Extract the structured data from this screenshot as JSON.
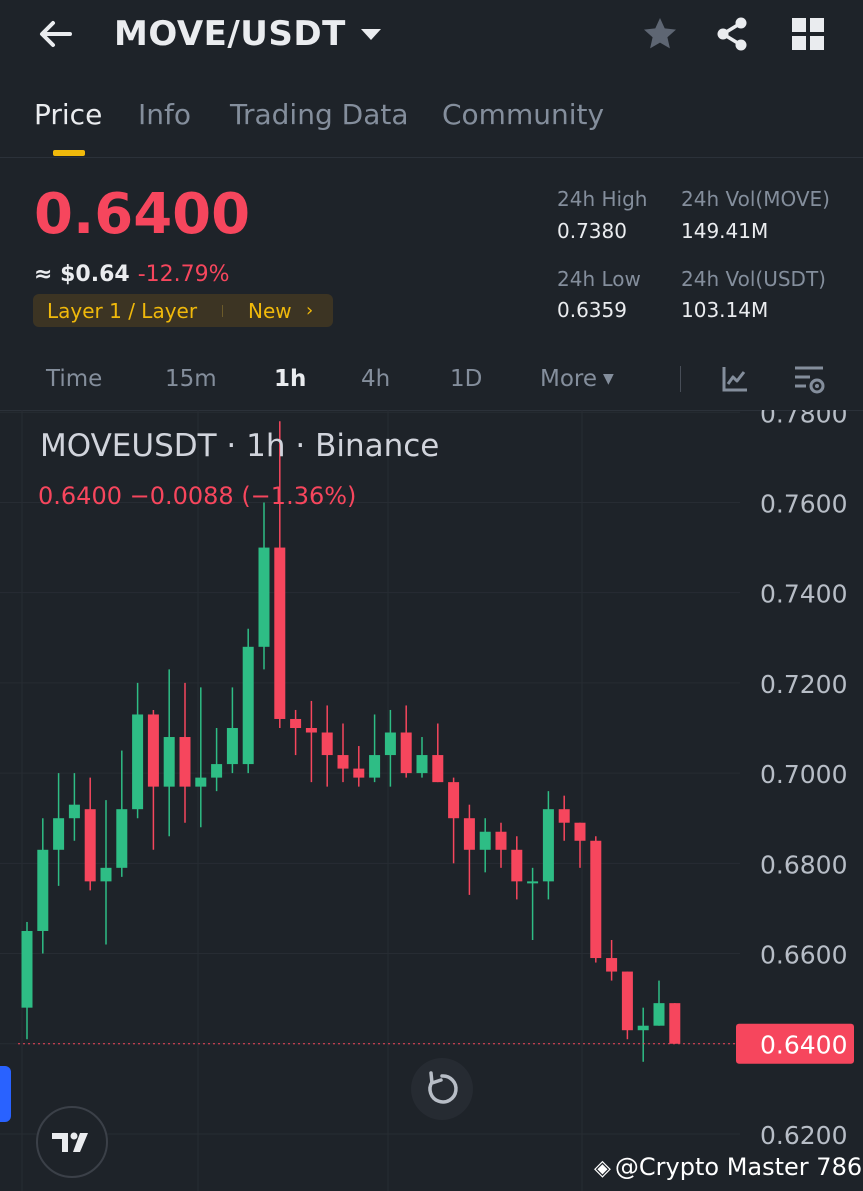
{
  "header": {
    "pair": "MOVE/USDT",
    "icons": [
      "back-arrow-icon",
      "caret-down-icon",
      "star-icon",
      "share-icon",
      "grid-icon"
    ]
  },
  "tabs": [
    {
      "label": "Price",
      "active": true
    },
    {
      "label": "Info",
      "active": false
    },
    {
      "label": "Trading Data",
      "active": false
    },
    {
      "label": "Community",
      "active": false
    }
  ],
  "price": {
    "last": "0.6400",
    "approx_usd": "≈ $0.64",
    "change_pct": "-12.79%",
    "tag": "Layer 1 / Layer",
    "tag_badge": "New",
    "color_down": "#f6465d",
    "color_up": "#2ebd85",
    "accent": "#f0b90b"
  },
  "stats": {
    "high_label": "24h High",
    "high_value": "0.7380",
    "low_label": "24h Low",
    "low_value": "0.6359",
    "vol_move_label": "24h Vol(MOVE)",
    "vol_move_value": "149.41M",
    "vol_usdt_label": "24h Vol(USDT)",
    "vol_usdt_value": "103.14M"
  },
  "intervals": [
    {
      "label": "Time",
      "active": false
    },
    {
      "label": "15m",
      "active": false
    },
    {
      "label": "1h",
      "active": true
    },
    {
      "label": "4h",
      "active": false
    },
    {
      "label": "1D",
      "active": false
    },
    {
      "label": "More",
      "active": false
    }
  ],
  "chart": {
    "title": "MOVEUSDT · 1h · Binance",
    "ohlc_line": "0.6400  −0.0088 (−1.36%)",
    "watermark": "@Crypto  Master 786"
  },
  "chart_data": {
    "type": "candlestick",
    "symbol": "MOVEUSDT",
    "interval": "1h",
    "exchange": "Binance",
    "ylim": [
      0.616,
      0.7805
    ],
    "yticks": [
      "0.7800",
      "0.7600",
      "0.7400",
      "0.7200",
      "0.7000",
      "0.6800",
      "0.6600",
      "0.6400",
      "0.6200"
    ],
    "last_price_label": "0.6400",
    "last_price": 0.64,
    "candles": [
      {
        "o": 0.648,
        "h": 0.667,
        "l": 0.641,
        "c": 0.665
      },
      {
        "o": 0.665,
        "h": 0.69,
        "l": 0.66,
        "c": 0.683
      },
      {
        "o": 0.683,
        "h": 0.7,
        "l": 0.675,
        "c": 0.69
      },
      {
        "o": 0.69,
        "h": 0.7,
        "l": 0.685,
        "c": 0.693
      },
      {
        "o": 0.692,
        "h": 0.699,
        "l": 0.674,
        "c": 0.676
      },
      {
        "o": 0.676,
        "h": 0.694,
        "l": 0.662,
        "c": 0.679
      },
      {
        "o": 0.679,
        "h": 0.705,
        "l": 0.677,
        "c": 0.692
      },
      {
        "o": 0.692,
        "h": 0.72,
        "l": 0.69,
        "c": 0.713
      },
      {
        "o": 0.713,
        "h": 0.714,
        "l": 0.683,
        "c": 0.697
      },
      {
        "o": 0.697,
        "h": 0.723,
        "l": 0.686,
        "c": 0.708
      },
      {
        "o": 0.708,
        "h": 0.72,
        "l": 0.689,
        "c": 0.697
      },
      {
        "o": 0.697,
        "h": 0.719,
        "l": 0.688,
        "c": 0.699
      },
      {
        "o": 0.699,
        "h": 0.71,
        "l": 0.696,
        "c": 0.702
      },
      {
        "o": 0.702,
        "h": 0.719,
        "l": 0.7,
        "c": 0.71
      },
      {
        "o": 0.702,
        "h": 0.732,
        "l": 0.7,
        "c": 0.728
      },
      {
        "o": 0.728,
        "h": 0.76,
        "l": 0.723,
        "c": 0.75
      },
      {
        "o": 0.75,
        "h": 0.778,
        "l": 0.71,
        "c": 0.712
      },
      {
        "o": 0.712,
        "h": 0.714,
        "l": 0.704,
        "c": 0.71
      },
      {
        "o": 0.71,
        "h": 0.716,
        "l": 0.698,
        "c": 0.709
      },
      {
        "o": 0.709,
        "h": 0.715,
        "l": 0.697,
        "c": 0.704
      },
      {
        "o": 0.704,
        "h": 0.711,
        "l": 0.698,
        "c": 0.701
      },
      {
        "o": 0.701,
        "h": 0.706,
        "l": 0.697,
        "c": 0.699
      },
      {
        "o": 0.699,
        "h": 0.713,
        "l": 0.698,
        "c": 0.704
      },
      {
        "o": 0.704,
        "h": 0.714,
        "l": 0.697,
        "c": 0.709
      },
      {
        "o": 0.709,
        "h": 0.715,
        "l": 0.699,
        "c": 0.7
      },
      {
        "o": 0.7,
        "h": 0.708,
        "l": 0.699,
        "c": 0.704
      },
      {
        "o": 0.704,
        "h": 0.711,
        "l": 0.698,
        "c": 0.698
      },
      {
        "o": 0.698,
        "h": 0.699,
        "l": 0.68,
        "c": 0.69
      },
      {
        "o": 0.69,
        "h": 0.693,
        "l": 0.673,
        "c": 0.683
      },
      {
        "o": 0.683,
        "h": 0.69,
        "l": 0.678,
        "c": 0.687
      },
      {
        "o": 0.687,
        "h": 0.689,
        "l": 0.679,
        "c": 0.683
      },
      {
        "o": 0.683,
        "h": 0.686,
        "l": 0.672,
        "c": 0.676
      },
      {
        "o": 0.676,
        "h": 0.679,
        "l": 0.663,
        "c": 0.676
      },
      {
        "o": 0.676,
        "h": 0.696,
        "l": 0.672,
        "c": 0.692
      },
      {
        "o": 0.692,
        "h": 0.695,
        "l": 0.685,
        "c": 0.689
      },
      {
        "o": 0.689,
        "h": 0.689,
        "l": 0.679,
        "c": 0.685
      },
      {
        "o": 0.685,
        "h": 0.686,
        "l": 0.658,
        "c": 0.659
      },
      {
        "o": 0.659,
        "h": 0.663,
        "l": 0.654,
        "c": 0.656
      },
      {
        "o": 0.656,
        "h": 0.656,
        "l": 0.641,
        "c": 0.643
      },
      {
        "o": 0.643,
        "h": 0.648,
        "l": 0.636,
        "c": 0.644
      },
      {
        "o": 0.644,
        "h": 0.654,
        "l": 0.644,
        "c": 0.649
      },
      {
        "o": 0.649,
        "h": 0.649,
        "l": 0.64,
        "c": 0.64
      }
    ]
  }
}
